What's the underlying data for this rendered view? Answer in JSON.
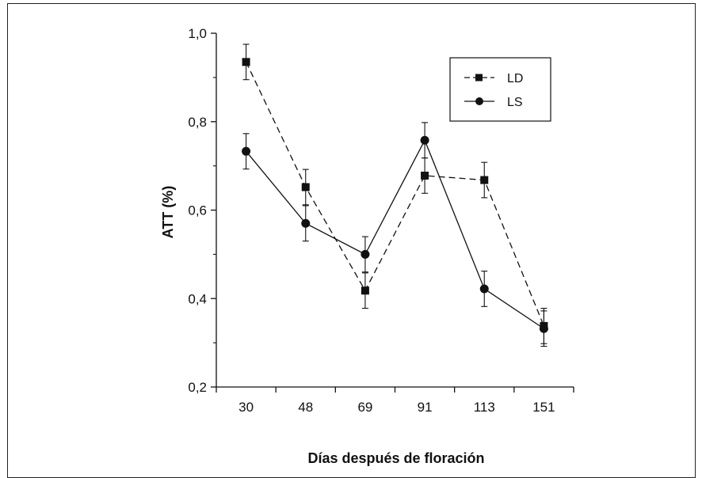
{
  "chart_data": {
    "type": "line",
    "categories": [
      "30",
      "48",
      "69",
      "91",
      "113",
      "151"
    ],
    "xlabel": "Días después de floración",
    "ylabel": "ATT (%)",
    "ylim": [
      0.2,
      1.0
    ],
    "yticks": [
      0.2,
      0.4,
      0.6,
      0.8,
      1.0
    ],
    "ytick_labels": [
      "0,2",
      "0,4",
      "0,6",
      "0,8",
      "1,0"
    ],
    "grid": false,
    "legend_position": "top-right",
    "series": [
      {
        "name": "LD",
        "marker": "square",
        "linestyle": "dashed",
        "color": "#111111",
        "values": [
          0.935,
          0.652,
          0.418,
          0.678,
          0.668,
          0.338
        ],
        "errors": [
          0.04,
          0.04,
          0.04,
          0.04,
          0.04,
          0.04
        ]
      },
      {
        "name": "LS",
        "marker": "circle",
        "linestyle": "solid",
        "color": "#111111",
        "values": [
          0.733,
          0.57,
          0.5,
          0.758,
          0.422,
          0.332
        ],
        "errors": [
          0.04,
          0.04,
          0.04,
          0.04,
          0.04,
          0.04
        ]
      }
    ]
  }
}
